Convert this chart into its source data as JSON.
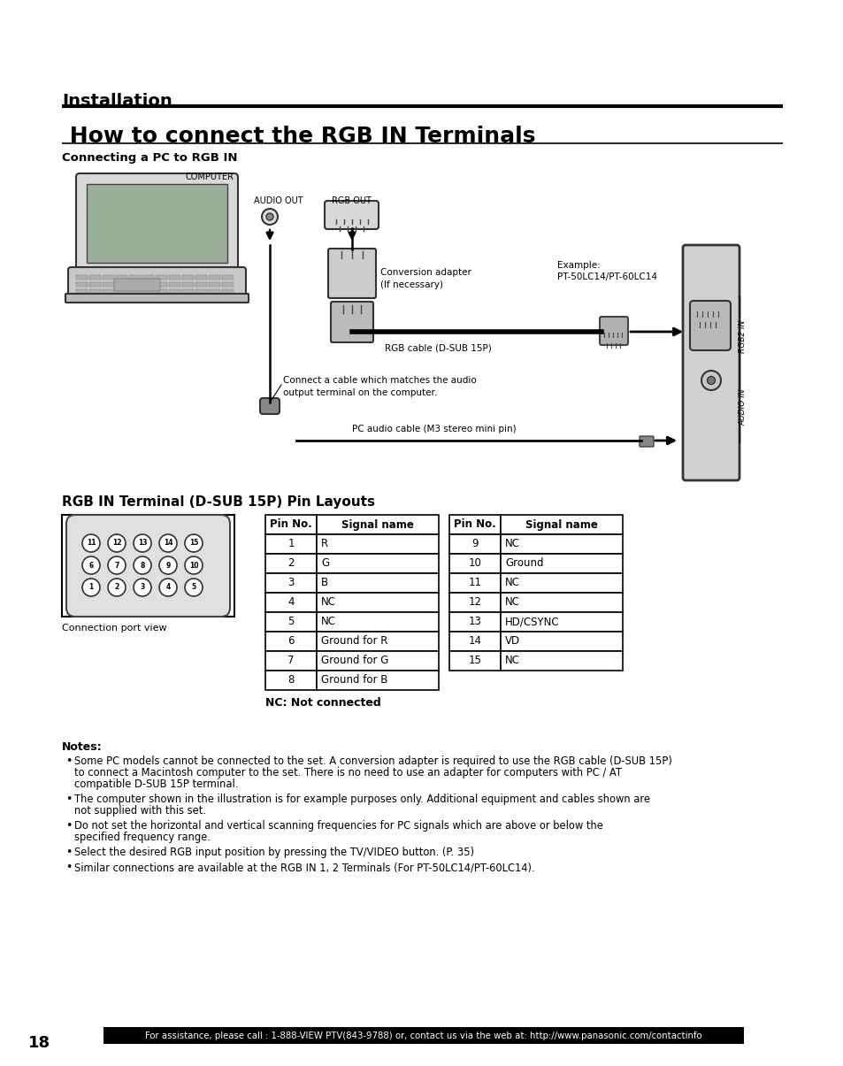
{
  "page_title": "Installation",
  "section_title": " How to connect the RGB IN Terminals",
  "subsection1": "Connecting a PC to RGB IN",
  "subsection2": "RGB IN Terminal (D-SUB 15P) Pin Layouts",
  "notes_title": "Notes:",
  "notes": [
    "Some PC models cannot be connected to the set. A conversion adapter is required to use the RGB cable (D-SUB 15P) to connect a Macintosh computer to the set. There is no need to use an adapter for computers with PC / AT compatible D-SUB 15P terminal.",
    "The computer shown in the illustration is for example purposes only. Additional equipment and cables shown are not supplied with this set.",
    "Do not set the horizontal and vertical scanning frequencies for PC signals which are above or below the specified frequency range.",
    "Select the desired RGB input position by pressing the TV/VIDEO button. (P. 35)",
    "Similar connections are available at the RGB IN 1, 2 Terminals (For PT-50LC14/PT-60LC14)."
  ],
  "table_left_headers": [
    "Pin No.",
    "Signal name"
  ],
  "table_left_rows": [
    [
      "1",
      "R"
    ],
    [
      "2",
      "G"
    ],
    [
      "3",
      "B"
    ],
    [
      "4",
      "NC"
    ],
    [
      "5",
      "NC"
    ],
    [
      "6",
      "Ground for R"
    ],
    [
      "7",
      "Ground for G"
    ],
    [
      "8",
      "Ground for B"
    ]
  ],
  "table_right_headers": [
    "Pin No.",
    "Signal name"
  ],
  "table_right_rows": [
    [
      "9",
      "NC"
    ],
    [
      "10",
      "Ground"
    ],
    [
      "11",
      "NC"
    ],
    [
      "12",
      "NC"
    ],
    [
      "13",
      "HD/CSYNC"
    ],
    [
      "14",
      "VD"
    ],
    [
      "15",
      "NC"
    ]
  ],
  "nc_note": "NC: Not connected",
  "connection_port_view": "Connection port view",
  "footer_text": "For assistance, please call : 1-888-VIEW PTV(843-9788) or, contact us via the web at: http://www.panasonic.com/contactinfo",
  "page_number": "18",
  "bg_color": "#ffffff"
}
